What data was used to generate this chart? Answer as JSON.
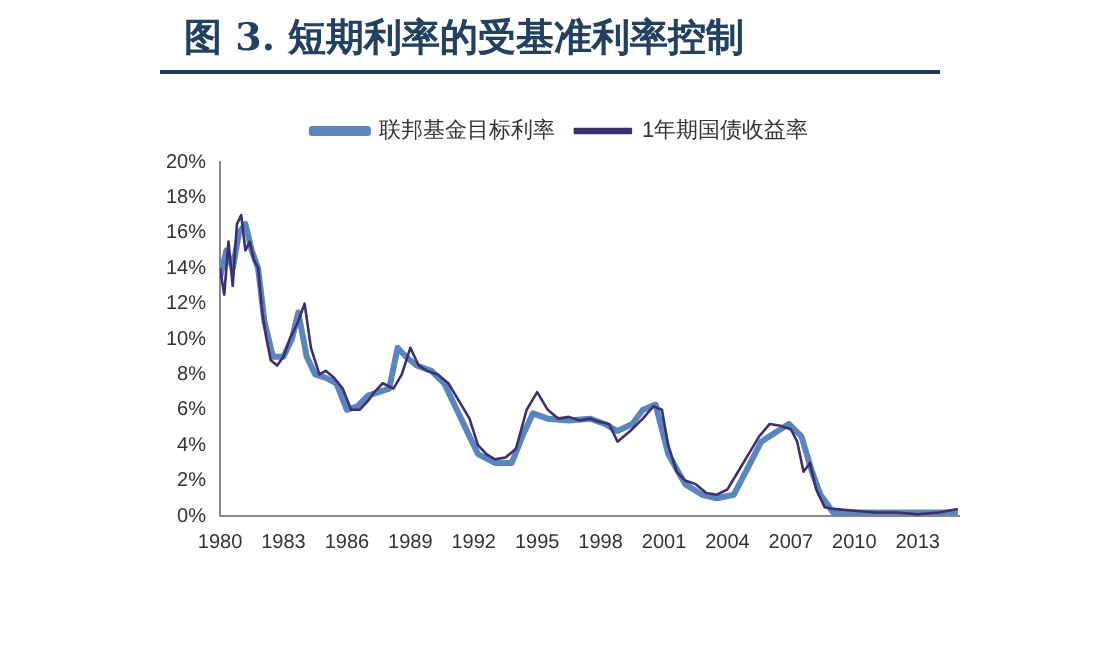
{
  "chart_data": {
    "type": "line",
    "title": "图 3. 短期利率的受基准利率控制",
    "legend": "top",
    "grid": false,
    "marker": "none",
    "xlim": [
      1980,
      2015
    ],
    "xticks": [
      1980,
      1983,
      1986,
      1989,
      1992,
      1995,
      1998,
      2001,
      2004,
      2007,
      2010,
      2013
    ],
    "ylim": [
      0,
      20
    ],
    "yticks": [
      {
        "value": 0,
        "label": "0%"
      },
      {
        "value": 2,
        "label": "2%"
      },
      {
        "value": 4,
        "label": "4%"
      },
      {
        "value": 6,
        "label": "6%"
      },
      {
        "value": 8,
        "label": "8%"
      },
      {
        "value": 10,
        "label": "10%"
      },
      {
        "value": 12,
        "label": "12%"
      },
      {
        "value": 14,
        "label": "14%"
      },
      {
        "value": 16,
        "label": "16%"
      },
      {
        "value": 18,
        "label": "18%"
      },
      {
        "value": 20,
        "label": "20%"
      }
    ],
    "series": [
      {
        "name": "联邦基金目标利率",
        "color": "#5b86bd",
        "x": [
          1980,
          1980.3,
          1980.6,
          1980.9,
          1981.2,
          1981.5,
          1981.8,
          1982.1,
          1982.5,
          1983,
          1983.4,
          1983.7,
          1984.1,
          1984.5,
          1985,
          1985.5,
          1986,
          1986.5,
          1987,
          1987.5,
          1988,
          1988.4,
          1988.8,
          1989.3,
          1990,
          1990.6,
          1991.2,
          1991.8,
          1992.2,
          1993,
          1993.8,
          1994.3,
          1994.8,
          1995.5,
          1996.5,
          1997.5,
          1998.2,
          1998.8,
          1999.5,
          2000,
          2000.6,
          2001.2,
          2002,
          2002.8,
          2003.5,
          2004.3,
          2005,
          2005.6,
          2006.9,
          2007.5,
          2008,
          2008.4,
          2009,
          2011,
          2013,
          2014.9
        ],
        "values": [
          13.5,
          15,
          14,
          16,
          16.5,
          15,
          14,
          11,
          9,
          9,
          10,
          11.5,
          9,
          8,
          7.8,
          7.5,
          6,
          6.2,
          6.8,
          7,
          7.2,
          9.5,
          9,
          8.5,
          8.2,
          7.5,
          6,
          4.5,
          3.5,
          3,
          3,
          4.5,
          5.8,
          5.5,
          5.4,
          5.5,
          5.2,
          4.8,
          5.2,
          6,
          6.3,
          3.5,
          1.8,
          1.2,
          1,
          1.2,
          2.8,
          4.2,
          5.2,
          4.5,
          2.5,
          1.2,
          0.2,
          0.2,
          0.2,
          0.2
        ]
      },
      {
        "name": "1年期国债收益率",
        "color": "#3c2f6e",
        "x": [
          1980,
          1980.2,
          1980.4,
          1980.6,
          1980.8,
          1981,
          1981.2,
          1981.4,
          1981.6,
          1981.8,
          1982,
          1982.2,
          1982.4,
          1982.7,
          1983,
          1983.3,
          1983.7,
          1984,
          1984.3,
          1984.7,
          1985,
          1985.4,
          1985.8,
          1986.2,
          1986.6,
          1987,
          1987.3,
          1987.7,
          1988.2,
          1988.6,
          1989,
          1989.4,
          1989.8,
          1990.3,
          1990.8,
          1991.3,
          1991.8,
          1992.2,
          1992.6,
          1993,
          1993.5,
          1994,
          1994.5,
          1995,
          1995.5,
          1996,
          1996.5,
          1997,
          1997.5,
          1998,
          1998.4,
          1998.8,
          1999.4,
          2000,
          2000.5,
          2000.9,
          2001.2,
          2001.6,
          2002,
          2002.5,
          2003,
          2003.5,
          2004,
          2004.5,
          2005,
          2005.5,
          2006,
          2006.5,
          2007,
          2007.3,
          2007.6,
          2007.9,
          2008.2,
          2008.6,
          2009,
          2010,
          2011,
          2012,
          2013,
          2014,
          2014.9
        ],
        "values": [
          14,
          12.5,
          15.5,
          13,
          16.5,
          17,
          15,
          15.5,
          14.5,
          14,
          11.5,
          10,
          8.8,
          8.5,
          9,
          10,
          11,
          12,
          9.5,
          8,
          8.2,
          7.8,
          7.2,
          6,
          6,
          6.5,
          7,
          7.5,
          7.2,
          8,
          9.5,
          8.5,
          8.2,
          8,
          7.5,
          6.5,
          5.5,
          4,
          3.5,
          3.2,
          3.3,
          3.8,
          6,
          7,
          6,
          5.5,
          5.6,
          5.4,
          5.5,
          5.3,
          5.2,
          4.2,
          4.8,
          5.5,
          6.2,
          6,
          4,
          2.5,
          2,
          1.8,
          1.3,
          1.2,
          1.5,
          2.5,
          3.5,
          4.5,
          5.2,
          5.1,
          4.9,
          4.2,
          2.5,
          3,
          1.5,
          0.5,
          0.4,
          0.3,
          0.2,
          0.2,
          0.1,
          0.2,
          0.4
        ]
      }
    ]
  }
}
